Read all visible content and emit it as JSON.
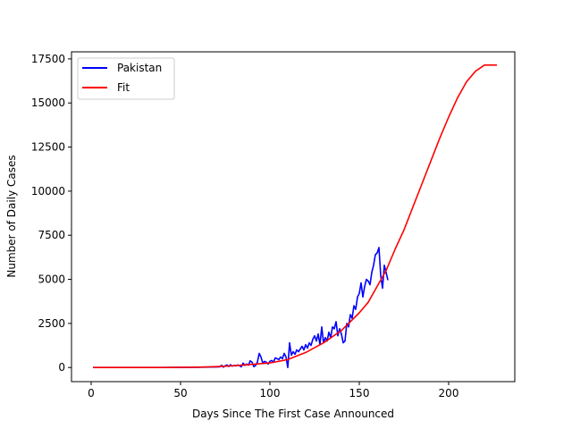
{
  "chart_data": {
    "type": "line",
    "xlabel": "Days Since The First Case Announced",
    "ylabel": "Number of Daily Cases",
    "xlim": [
      -11,
      237
    ],
    "ylim": [
      -800,
      17900
    ],
    "xticks": [
      0,
      50,
      100,
      150,
      200
    ],
    "yticks": [
      0,
      2500,
      5000,
      7500,
      10000,
      12500,
      15000,
      17500
    ],
    "grid": false,
    "legend_position": "upper-left",
    "series": [
      {
        "name": "Pakistan",
        "color": "#0000ff",
        "points": [
          [
            1,
            0
          ],
          [
            10,
            0
          ],
          [
            20,
            0
          ],
          [
            30,
            0
          ],
          [
            40,
            0
          ],
          [
            50,
            5
          ],
          [
            60,
            10
          ],
          [
            70,
            30
          ],
          [
            72,
            40
          ],
          [
            73,
            120
          ],
          [
            74,
            20
          ],
          [
            75,
            100
          ],
          [
            76,
            150
          ],
          [
            77,
            60
          ],
          [
            78,
            160
          ],
          [
            79,
            80
          ],
          [
            80,
            120
          ],
          [
            81,
            90
          ],
          [
            82,
            150
          ],
          [
            83,
            100
          ],
          [
            84,
            40
          ],
          [
            85,
            250
          ],
          [
            86,
            120
          ],
          [
            87,
            200
          ],
          [
            88,
            130
          ],
          [
            89,
            380
          ],
          [
            90,
            300
          ],
          [
            91,
            50
          ],
          [
            92,
            120
          ],
          [
            93,
            300
          ],
          [
            94,
            800
          ],
          [
            95,
            600
          ],
          [
            96,
            250
          ],
          [
            97,
            350
          ],
          [
            98,
            300
          ],
          [
            99,
            200
          ],
          [
            100,
            350
          ],
          [
            101,
            400
          ],
          [
            102,
            300
          ],
          [
            103,
            550
          ],
          [
            104,
            500
          ],
          [
            105,
            450
          ],
          [
            106,
            600
          ],
          [
            107,
            500
          ],
          [
            108,
            800
          ],
          [
            109,
            600
          ],
          [
            110,
            0
          ],
          [
            111,
            1400
          ],
          [
            112,
            700
          ],
          [
            113,
            900
          ],
          [
            114,
            750
          ],
          [
            115,
            1000
          ],
          [
            116,
            900
          ],
          [
            117,
            1050
          ],
          [
            118,
            1200
          ],
          [
            119,
            1000
          ],
          [
            120,
            1300
          ],
          [
            121,
            1100
          ],
          [
            122,
            1400
          ],
          [
            123,
            1250
          ],
          [
            124,
            1600
          ],
          [
            125,
            1800
          ],
          [
            126,
            1500
          ],
          [
            127,
            1900
          ],
          [
            128,
            1300
          ],
          [
            129,
            2300
          ],
          [
            130,
            1400
          ],
          [
            131,
            1700
          ],
          [
            132,
            1500
          ],
          [
            133,
            2000
          ],
          [
            134,
            1700
          ],
          [
            135,
            2300
          ],
          [
            136,
            2200
          ],
          [
            137,
            2600
          ],
          [
            138,
            1800
          ],
          [
            139,
            2200
          ],
          [
            140,
            1900
          ],
          [
            141,
            1400
          ],
          [
            142,
            1500
          ],
          [
            143,
            2500
          ],
          [
            144,
            2300
          ],
          [
            145,
            3000
          ],
          [
            146,
            2800
          ],
          [
            147,
            3500
          ],
          [
            148,
            3300
          ],
          [
            149,
            4000
          ],
          [
            150,
            4200
          ],
          [
            151,
            4800
          ],
          [
            152,
            4000
          ],
          [
            153,
            4600
          ],
          [
            154,
            5000
          ],
          [
            155,
            4900
          ],
          [
            156,
            4700
          ],
          [
            157,
            5400
          ],
          [
            158,
            5800
          ],
          [
            159,
            6400
          ],
          [
            160,
            6500
          ],
          [
            161,
            6800
          ],
          [
            162,
            5200
          ],
          [
            163,
            4500
          ],
          [
            164,
            5800
          ],
          [
            165,
            5400
          ],
          [
            166,
            4950
          ]
        ]
      },
      {
        "name": "Fit",
        "color": "#ff0000",
        "points": [
          [
            1,
            0
          ],
          [
            20,
            0
          ],
          [
            40,
            3
          ],
          [
            60,
            20
          ],
          [
            70,
            50
          ],
          [
            80,
            100
          ],
          [
            90,
            180
          ],
          [
            100,
            260
          ],
          [
            110,
            450
          ],
          [
            120,
            850
          ],
          [
            130,
            1400
          ],
          [
            140,
            2100
          ],
          [
            150,
            3100
          ],
          [
            155,
            3700
          ],
          [
            160,
            4600
          ],
          [
            165,
            5500
          ],
          [
            170,
            6700
          ],
          [
            175,
            7800
          ],
          [
            180,
            9100
          ],
          [
            185,
            10400
          ],
          [
            190,
            11700
          ],
          [
            195,
            13000
          ],
          [
            200,
            14200
          ],
          [
            205,
            15300
          ],
          [
            210,
            16200
          ],
          [
            215,
            16800
          ],
          [
            220,
            17150
          ],
          [
            227,
            17150
          ]
        ]
      }
    ]
  }
}
